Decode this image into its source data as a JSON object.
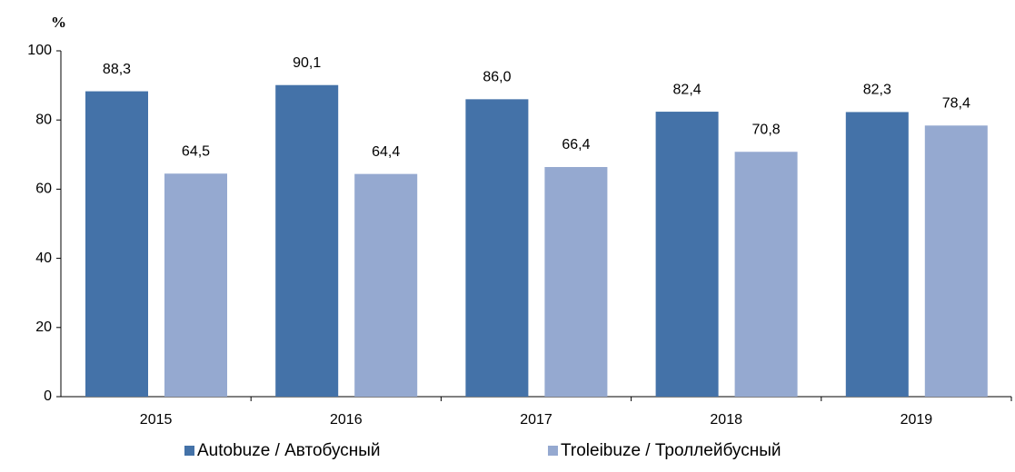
{
  "chart_data": {
    "type": "bar",
    "y_label": "%",
    "categories": [
      "2015",
      "2016",
      "2017",
      "2018",
      "2019"
    ],
    "series": [
      {
        "name": "Autobuze / Автобусный",
        "color": "#4472a8",
        "values": [
          88.3,
          90.1,
          86.0,
          82.4,
          82.3
        ],
        "value_labels": [
          "88,3",
          "90,1",
          "86,0",
          "82,4",
          "82,3"
        ]
      },
      {
        "name": "Troleibuze / Троллейбусный",
        "color": "#95a9d0",
        "values": [
          64.5,
          64.4,
          66.4,
          70.8,
          78.4
        ],
        "value_labels": [
          "64,5",
          "64,4",
          "66,4",
          "70,8",
          "78,4"
        ]
      }
    ],
    "ylim": [
      0,
      100
    ],
    "yticks": [
      0,
      20,
      40,
      60,
      80,
      100
    ],
    "legend": "bottom"
  }
}
